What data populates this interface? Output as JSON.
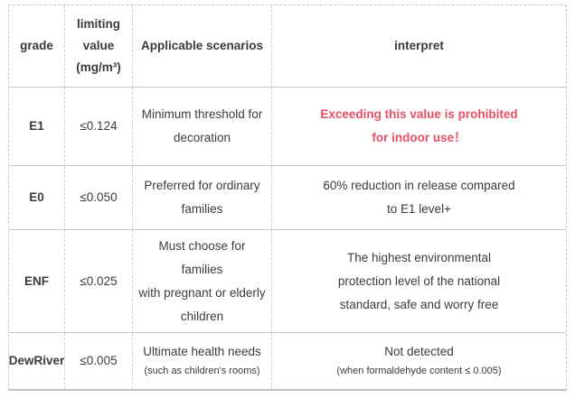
{
  "colors": {
    "accent_red": "#e95063",
    "text": "#3b3b3b",
    "grid_line": "#c9c9c9"
  },
  "table": {
    "header": {
      "grade": "grade",
      "limit": "limiting\nvalue\n(mg/m³)",
      "scenarios": "Applicable scenarios",
      "interpret": "interpret"
    },
    "rows": [
      {
        "grade": "E1",
        "limit": "≤0.124",
        "scenario": "Minimum threshold for\ndecoration",
        "scenario_sub": "",
        "interpret": "Exceeding this value is prohibited\nfor indoor use！",
        "interpret_sub": ""
      },
      {
        "grade": "E0",
        "limit": "≤0.050",
        "scenario": "Preferred for ordinary\nfamilies",
        "scenario_sub": "",
        "interpret": "60% reduction in release compared\nto E1 level+",
        "interpret_sub": ""
      },
      {
        "grade": "ENF",
        "limit": "≤0.025",
        "scenario": "Must choose for families\nwith pregnant or elderly\nchildren",
        "scenario_sub": "",
        "interpret": "The highest environmental\nprotection level of the national\nstandard, safe and worry free",
        "interpret_sub": ""
      },
      {
        "grade": "DewRiver",
        "limit": "≤0.005",
        "scenario": "Ultimate health needs",
        "scenario_sub": "(such as children's rooms)",
        "interpret": "Not detected",
        "interpret_sub": "(when formaldehyde content ≤ 0.005)"
      }
    ]
  }
}
